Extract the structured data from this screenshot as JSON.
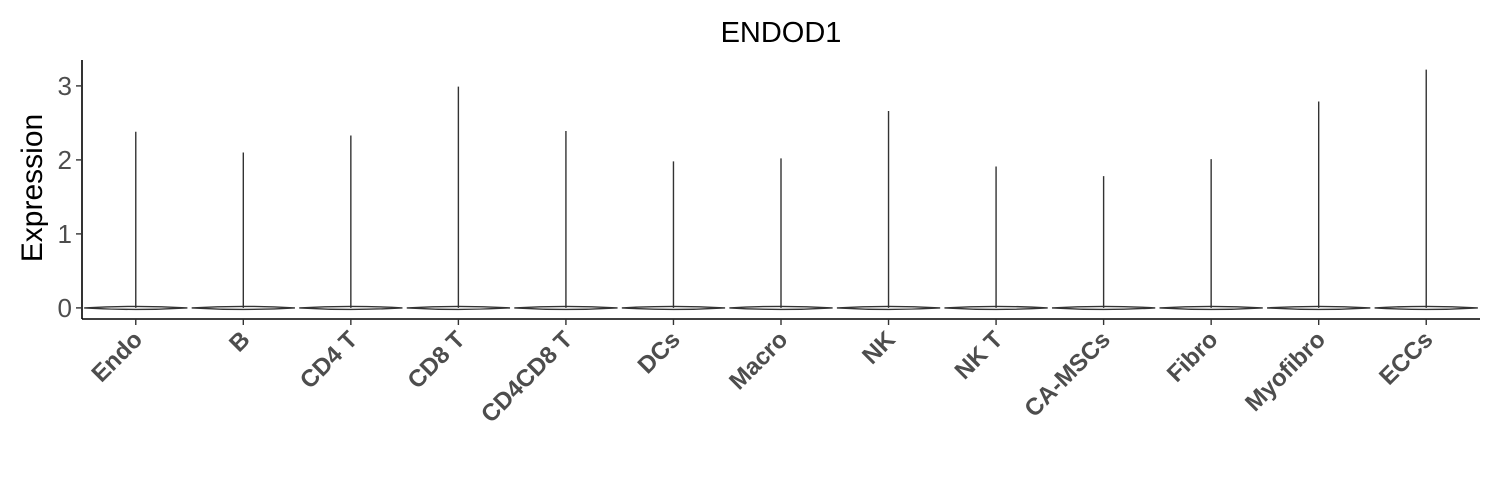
{
  "chart_data": {
    "type": "violin",
    "title": "ENDOD1",
    "xlabel": "",
    "ylabel": "Expression",
    "ylim": [
      -0.15,
      3.35
    ],
    "yticks": [
      0,
      1,
      2,
      3
    ],
    "grid": false,
    "legend": "none",
    "categories": [
      "Endo",
      "B",
      "CD4 T",
      "CD8 T",
      "CD4CD8 T",
      "DCs",
      "Macro",
      "NK",
      "NK T",
      "CA-MSCs",
      "Fibro",
      "Myofibro",
      "ECCs"
    ],
    "max_values": [
      2.38,
      2.1,
      2.33,
      2.99,
      2.39,
      1.98,
      2.02,
      2.66,
      1.91,
      1.78,
      2.01,
      2.79,
      3.22
    ],
    "median": 0,
    "colors": {
      "line": "#333333",
      "axis": "#000000",
      "tick_text": "#4d4d4d"
    }
  }
}
